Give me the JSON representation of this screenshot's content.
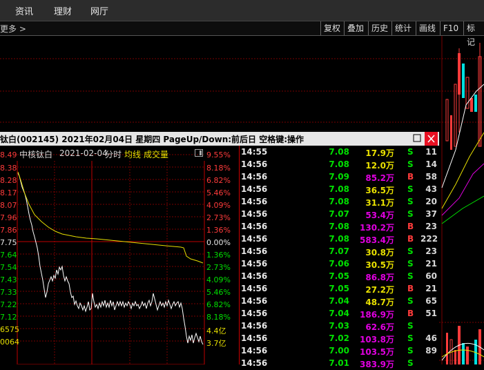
{
  "menu": [
    "资讯",
    "理财",
    "网厅"
  ],
  "toolbar": {
    "more": "更多 >",
    "buttons": [
      "复权",
      "叠加",
      "历史",
      "统计",
      "画线",
      "F10",
      "标记"
    ]
  },
  "window": {
    "title": "钛白(002145)  2021年02月04日 星期四  PageUp/Down:前后日  空格键:操作",
    "close_label": "×"
  },
  "chart": {
    "stock_name": "中核钛白",
    "date": "2021-02-04",
    "mode": "分时",
    "avg_label": "均线",
    "vol_label": "成交量",
    "price_ticks": [
      "8.49",
      "8.38",
      "8.28",
      "8.17",
      "8.07",
      "7.96",
      "7.86",
      "7.75",
      "7.64",
      "7.54",
      "7.43",
      "7.33",
      "7.22",
      "7.12",
      "6575",
      "0064"
    ],
    "pct_ticks": [
      "9.55%",
      "8.18%",
      "6.82%",
      "5.46%",
      "4.09%",
      "2.73%",
      "1.36%",
      "0.00%",
      "1.36%",
      "2.73%",
      "4.09%",
      "5.46%",
      "6.82%",
      "8.18%",
      "4.4亿",
      "3.7亿"
    ]
  },
  "colors": {
    "up": "#ff3b3b",
    "down": "#00e000",
    "neutral": "#e8e8e8",
    "avg_line": "#e8e000",
    "vol_yellow": "#e8e000",
    "vol_magenta": "#e000e0"
  },
  "ticks": [
    {
      "time": "14:55",
      "price": "7.08",
      "vol": "17.9万",
      "dir": "S",
      "cnt": "11",
      "vol_color": "yellow"
    },
    {
      "time": "14:56",
      "price": "7.08",
      "vol": "12.0万",
      "dir": "S",
      "cnt": "14",
      "vol_color": "yellow"
    },
    {
      "time": "14:56",
      "price": "7.09",
      "vol": "85.2万",
      "dir": "B",
      "cnt": "58",
      "vol_color": "magenta"
    },
    {
      "time": "14:56",
      "price": "7.08",
      "vol": "36.5万",
      "dir": "S",
      "cnt": "43",
      "vol_color": "yellow"
    },
    {
      "time": "14:56",
      "price": "7.08",
      "vol": "31.1万",
      "dir": "S",
      "cnt": "20",
      "vol_color": "yellow"
    },
    {
      "time": "14:56",
      "price": "7.07",
      "vol": "53.4万",
      "dir": "S",
      "cnt": "37",
      "vol_color": "magenta"
    },
    {
      "time": "14:56",
      "price": "7.08",
      "vol": "130.2万",
      "dir": "B",
      "cnt": "23",
      "vol_color": "magenta"
    },
    {
      "time": "14:56",
      "price": "7.08",
      "vol": "583.4万",
      "dir": "B",
      "cnt": "222",
      "vol_color": "magenta"
    },
    {
      "time": "14:56",
      "price": "7.07",
      "vol": "30.8万",
      "dir": "S",
      "cnt": "23",
      "vol_color": "yellow"
    },
    {
      "time": "14:56",
      "price": "7.06",
      "vol": "30.5万",
      "dir": "S",
      "cnt": "21",
      "vol_color": "yellow"
    },
    {
      "time": "14:56",
      "price": "7.05",
      "vol": "86.8万",
      "dir": "S",
      "cnt": "60",
      "vol_color": "magenta"
    },
    {
      "time": "14:56",
      "price": "7.05",
      "vol": "27.2万",
      "dir": "B",
      "cnt": "21",
      "vol_color": "yellow"
    },
    {
      "time": "14:56",
      "price": "7.04",
      "vol": "48.7万",
      "dir": "S",
      "cnt": "65",
      "vol_color": "yellow"
    },
    {
      "time": "14:56",
      "price": "7.04",
      "vol": "186.9万",
      "dir": "B",
      "cnt": "51",
      "vol_color": "magenta"
    },
    {
      "time": "14:56",
      "price": "7.03",
      "vol": "62.6万",
      "dir": "S",
      "cnt": "",
      "vol_color": "magenta"
    },
    {
      "time": "14:56",
      "price": "7.02",
      "vol": "103.8万",
      "dir": "S",
      "cnt": "46",
      "vol_color": "magenta"
    },
    {
      "time": "14:56",
      "price": "7.00",
      "vol": "103.5万",
      "dir": "S",
      "cnt": "89",
      "vol_color": "magenta"
    },
    {
      "time": "14:56",
      "price": "7.01",
      "vol": "383.9万",
      "dir": "S",
      "cnt": "",
      "vol_color": "magenta"
    }
  ]
}
